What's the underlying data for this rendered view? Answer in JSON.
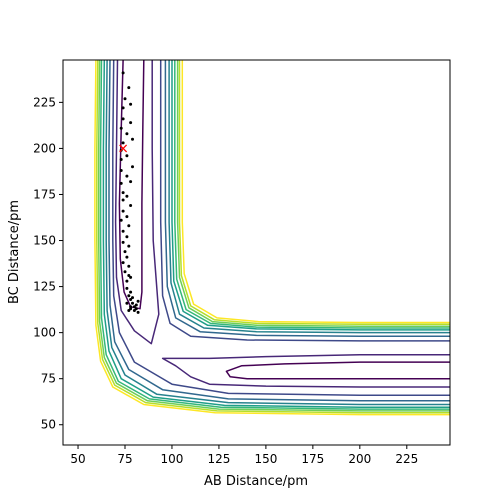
{
  "chart_data": {
    "type": "contour",
    "title": "",
    "xlabel": "AB Distance/pm",
    "ylabel": "BC Distance/pm",
    "xlim": [
      42,
      248
    ],
    "ylim": [
      39,
      248
    ],
    "xticks": [
      50,
      75,
      100,
      125,
      150,
      175,
      200,
      225
    ],
    "yticks": [
      50,
      75,
      100,
      125,
      150,
      175,
      200,
      225
    ],
    "grid": false,
    "legend": "none",
    "surface": {
      "name": "",
      "levels": 10,
      "colormap": [
        "#440154",
        "#482878",
        "#3e4989",
        "#31688e",
        "#26828e",
        "#1f9e89",
        "#35b779",
        "#6ece58",
        "#b5de2b",
        "#fde725"
      ],
      "contours": [
        {
          "level": 1,
          "branches": [
            [
              [
                74,
                248
              ],
              [
                73,
                210
              ],
              [
                72,
                170
              ],
              [
                72.5,
                140
              ],
              [
                74.5,
                122
              ],
              [
                78,
                114
              ],
              [
                83,
                113
              ],
              [
                84,
                122
              ],
              [
                84,
                140
              ],
              [
                84,
                170
              ],
              [
                84.5,
                210
              ],
              [
                85,
                248
              ]
            ],
            [
              [
                248,
                84
              ],
              [
                200,
                84
              ],
              [
                160,
                83
              ],
              [
                137,
                82
              ],
              [
                129,
                79
              ],
              [
                131,
                76
              ],
              [
                140,
                75
              ],
              [
                175,
                75
              ],
              [
                210,
                75
              ],
              [
                248,
                75
              ]
            ]
          ]
        },
        {
          "level": 2,
          "branches": [
            [
              [
                71,
                248
              ],
              [
                70.5,
                200
              ],
              [
                70,
                160
              ],
              [
                70.5,
                130
              ],
              [
                73,
                112
              ],
              [
                80,
                101
              ],
              [
                89,
                94
              ],
              [
                93,
                110
              ],
              [
                90,
                150
              ],
              [
                89.5,
                200
              ],
              [
                89.5,
                248
              ]
            ],
            [
              [
                248,
                88
              ],
              [
                200,
                88
              ],
              [
                150,
                87
              ],
              [
                120,
                86
              ],
              [
                95,
                86
              ],
              [
                102,
                82
              ],
              [
                110,
                76
              ],
              [
                120,
                72
              ],
              [
                150,
                71
              ],
              [
                200,
                70.5
              ],
              [
                248,
                70.5
              ]
            ]
          ]
        },
        {
          "level": 3,
          "branches": [
            [
              [
                69,
                248
              ],
              [
                68.5,
                200
              ],
              [
                68.5,
                150
              ],
              [
                69,
                120
              ],
              [
                72,
                100
              ],
              [
                80,
                84
              ],
              [
                100,
                72
              ],
              [
                130,
                67
              ],
              [
                200,
                66
              ],
              [
                248,
                66
              ]
            ],
            [
              [
                94,
                248
              ],
              [
                94,
                160
              ],
              [
                95,
                120
              ],
              [
                99,
                105
              ],
              [
                110,
                98
              ],
              [
                140,
                96
              ],
              [
                200,
                95.5
              ],
              [
                248,
                95.5
              ]
            ]
          ]
        },
        {
          "level": 4,
          "branches": [
            [
              [
                67,
                248
              ],
              [
                66.5,
                200
              ],
              [
                66.5,
                150
              ],
              [
                67,
                115
              ],
              [
                69.5,
                95
              ],
              [
                77,
                80
              ],
              [
                95,
                69
              ],
              [
                130,
                64
              ],
              [
                200,
                63
              ],
              [
                248,
                63
              ]
            ],
            [
              [
                96.5,
                248
              ],
              [
                96.5,
                160
              ],
              [
                97.5,
                125
              ],
              [
                102,
                108
              ],
              [
                115,
                100.5
              ],
              [
                145,
                98.5
              ],
              [
                200,
                98
              ],
              [
                248,
                98
              ]
            ]
          ]
        },
        {
          "level": 5,
          "branches": [
            [
              [
                65.5,
                248
              ],
              [
                65,
                200
              ],
              [
                65,
                150
              ],
              [
                65.5,
                112
              ],
              [
                68,
                92
              ],
              [
                75,
                77
              ],
              [
                92,
                66.5
              ],
              [
                130,
                62
              ],
              [
                200,
                61
              ],
              [
                248,
                61
              ]
            ],
            [
              [
                98.5,
                248
              ],
              [
                98.5,
                160
              ],
              [
                99.5,
                127
              ],
              [
                104,
                110
              ],
              [
                117,
                102.5
              ],
              [
                145,
                100.5
              ],
              [
                200,
                100
              ],
              [
                248,
                100
              ]
            ]
          ]
        },
        {
          "level": 6,
          "branches": [
            [
              [
                64,
                248
              ],
              [
                63.5,
                200
              ],
              [
                63.5,
                150
              ],
              [
                64,
                110
              ],
              [
                66.5,
                90
              ],
              [
                73,
                75
              ],
              [
                90,
                65
              ],
              [
                128,
                60.5
              ],
              [
                200,
                59.5
              ],
              [
                248,
                59.5
              ]
            ],
            [
              [
                100,
                248
              ],
              [
                100,
                160
              ],
              [
                101,
                128
              ],
              [
                106,
                111.5
              ],
              [
                119,
                104
              ],
              [
                145,
                102
              ],
              [
                200,
                101.5
              ],
              [
                248,
                101.5
              ]
            ]
          ]
        },
        {
          "level": 7,
          "branches": [
            [
              [
                62.5,
                248
              ],
              [
                62,
                200
              ],
              [
                62,
                150
              ],
              [
                62.5,
                108
              ],
              [
                65,
                88
              ],
              [
                71.5,
                73.5
              ],
              [
                88,
                64
              ],
              [
                126,
                59.5
              ],
              [
                200,
                58.5
              ],
              [
                248,
                58.5
              ]
            ],
            [
              [
                101.5,
                248
              ],
              [
                101.5,
                160
              ],
              [
                102.5,
                129
              ],
              [
                107.5,
                112.5
              ],
              [
                120.5,
                105
              ],
              [
                145,
                103
              ],
              [
                200,
                102.5
              ],
              [
                248,
                102.5
              ]
            ]
          ]
        },
        {
          "level": 8,
          "branches": [
            [
              [
                61.5,
                248
              ],
              [
                61,
                200
              ],
              [
                61,
                150
              ],
              [
                61.5,
                106
              ],
              [
                64,
                86.5
              ],
              [
                70.5,
                72.5
              ],
              [
                87,
                63
              ],
              [
                125,
                58.5
              ],
              [
                200,
                57.5
              ],
              [
                248,
                57.5
              ]
            ],
            [
              [
                103,
                248
              ],
              [
                103,
                160
              ],
              [
                104,
                130
              ],
              [
                109,
                113.5
              ],
              [
                121.5,
                106
              ],
              [
                145,
                104
              ],
              [
                200,
                103.5
              ],
              [
                248,
                103.5
              ]
            ]
          ]
        },
        {
          "level": 9,
          "branches": [
            [
              [
                60.5,
                248
              ],
              [
                60,
                200
              ],
              [
                60,
                150
              ],
              [
                60.5,
                105
              ],
              [
                63,
                85.5
              ],
              [
                69.5,
                71.5
              ],
              [
                86,
                62
              ],
              [
                124,
                57.5
              ],
              [
                200,
                56.5
              ],
              [
                248,
                56.5
              ]
            ],
            [
              [
                104,
                248
              ],
              [
                104,
                160
              ],
              [
                105,
                131
              ],
              [
                110,
                114.5
              ],
              [
                122.5,
                107
              ],
              [
                145,
                105
              ],
              [
                200,
                104.5
              ],
              [
                248,
                104.5
              ]
            ]
          ]
        },
        {
          "level": 10,
          "branches": [
            [
              [
                59.5,
                248
              ],
              [
                59,
                200
              ],
              [
                59,
                150
              ],
              [
                59.5,
                104
              ],
              [
                62,
                84.5
              ],
              [
                68.5,
                70.5
              ],
              [
                85,
                61
              ],
              [
                123,
                56.5
              ],
              [
                200,
                55.5
              ],
              [
                248,
                55.5
              ]
            ],
            [
              [
                105.5,
                248
              ],
              [
                105.5,
                160
              ],
              [
                106.5,
                132
              ],
              [
                111.5,
                115.5
              ],
              [
                124,
                108
              ],
              [
                146,
                106
              ],
              [
                200,
                105.5
              ],
              [
                248,
                105.5
              ]
            ]
          ]
        }
      ]
    },
    "trajectory": {
      "name": "",
      "color": "#000000",
      "points": [
        [
          74,
          241
        ],
        [
          77,
          233
        ],
        [
          75,
          227
        ],
        [
          78,
          224
        ],
        [
          74,
          222
        ],
        [
          74,
          216
        ],
        [
          78,
          214
        ],
        [
          73,
          211
        ],
        [
          76,
          208
        ],
        [
          74,
          203
        ],
        [
          79,
          205
        ],
        [
          73,
          199
        ],
        [
          76,
          196
        ],
        [
          73,
          194
        ],
        [
          79,
          190
        ],
        [
          73,
          188
        ],
        [
          76,
          185
        ],
        [
          73,
          181
        ],
        [
          78,
          182
        ],
        [
          74,
          176
        ],
        [
          76,
          174
        ],
        [
          74,
          172
        ],
        [
          78,
          169
        ],
        [
          74,
          166
        ],
        [
          76,
          163
        ],
        [
          73,
          161
        ],
        [
          77,
          158
        ],
        [
          74,
          155
        ],
        [
          76,
          152
        ],
        [
          74,
          149
        ],
        [
          77,
          147
        ],
        [
          75,
          144
        ],
        [
          76,
          141
        ],
        [
          74,
          138
        ],
        [
          77,
          136
        ],
        [
          75,
          133
        ],
        [
          77,
          131
        ],
        [
          76,
          128
        ],
        [
          78,
          130
        ],
        [
          76,
          124
        ],
        [
          78,
          122
        ],
        [
          77,
          120
        ],
        [
          78,
          118
        ],
        [
          79,
          116
        ],
        [
          78,
          114
        ],
        [
          80,
          112
        ],
        [
          81,
          113
        ],
        [
          82,
          111
        ],
        [
          81,
          115
        ],
        [
          82,
          117
        ],
        [
          79,
          119
        ],
        [
          76,
          116
        ],
        [
          77,
          112
        ],
        [
          78,
          113
        ],
        [
          80,
          114
        ]
      ]
    },
    "start_marker": {
      "symbol": "x",
      "color": "#ff0000",
      "x": 74,
      "y": 200
    }
  }
}
